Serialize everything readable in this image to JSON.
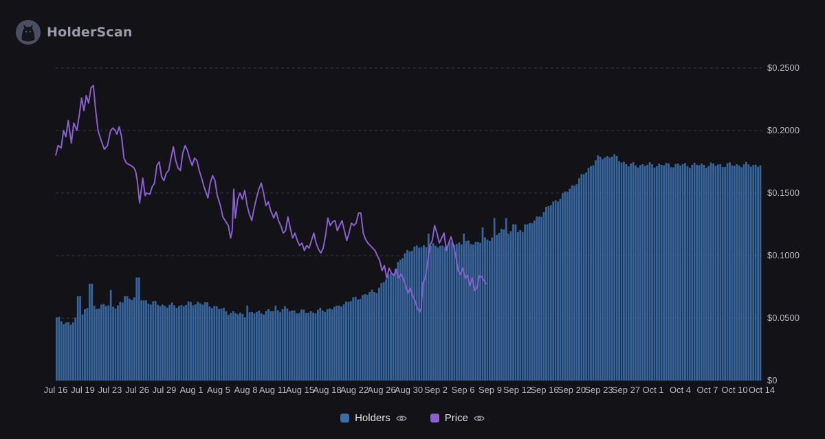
{
  "brand": {
    "name": "HolderScan",
    "logo_icon": "cat-icon"
  },
  "legend": [
    {
      "label": "Holders",
      "color": "#3b6ea8",
      "visibility_icon": "eye-icon"
    },
    {
      "label": "Price",
      "color": "#8a5fd0",
      "visibility_icon": "eye-icon"
    }
  ],
  "chart_data": {
    "type": "bar+line",
    "x_tick_labels": [
      "Jul 16",
      "Jul 19",
      "Jul 23",
      "Jul 26",
      "Jul 29",
      "Aug 1",
      "Aug 5",
      "Aug 8",
      "Aug 11",
      "Aug 15",
      "Aug 18",
      "Aug 22",
      "Aug 26",
      "Aug 30",
      "Sep 2",
      "Sep 6",
      "Sep 9",
      "Sep 12",
      "Sep 16",
      "Sep 20",
      "Sep 23",
      "Sep 27",
      "Oct 1",
      "Oct 4",
      "Oct 7",
      "Oct 10",
      "Oct 14"
    ],
    "y_right": {
      "tick_labels": [
        "$0",
        "$0.0500",
        "$0.1000",
        "$0.1500",
        "$0.2000",
        "$0.2500"
      ],
      "range": [
        0,
        0.25
      ]
    },
    "grid": true,
    "legend_position": "bottom-center",
    "series": [
      {
        "name": "Holders",
        "type": "bar",
        "color": "#3b6ea8",
        "axis": "hidden-left",
        "range": [
          0,
          1.0
        ],
        "anchors": [
          [
            0,
            0.2
          ],
          [
            2,
            0.18
          ],
          [
            4,
            0.23
          ],
          [
            6,
            0.24
          ],
          [
            8,
            0.24
          ],
          [
            10,
            0.27
          ],
          [
            12,
            0.25
          ],
          [
            14,
            0.24
          ],
          [
            16,
            0.24
          ],
          [
            18,
            0.25
          ],
          [
            20,
            0.24
          ],
          [
            22,
            0.22
          ],
          [
            24,
            0.21
          ],
          [
            26,
            0.22
          ],
          [
            27,
            0.22
          ],
          [
            29,
            0.23
          ],
          [
            31,
            0.22
          ],
          [
            33,
            0.22
          ],
          [
            35,
            0.23
          ],
          [
            37,
            0.25
          ],
          [
            39,
            0.27
          ],
          [
            41,
            0.29
          ],
          [
            43,
            0.35
          ],
          [
            45,
            0.42
          ],
          [
            47,
            0.43
          ],
          [
            49,
            0.43
          ],
          [
            51,
            0.44
          ],
          [
            53,
            0.44
          ],
          [
            55,
            0.45
          ],
          [
            57,
            0.48
          ],
          [
            59,
            0.47
          ],
          [
            61,
            0.51
          ],
          [
            63,
            0.56
          ],
          [
            65,
            0.6
          ],
          [
            67,
            0.65
          ],
          [
            69,
            0.71
          ],
          [
            71,
            0.72
          ],
          [
            73,
            0.69
          ]
        ],
        "spikes": [
          [
            3,
            0.27
          ],
          [
            4.5,
            0.31
          ],
          [
            7,
            0.29
          ],
          [
            9,
            0.27
          ],
          [
            10.5,
            0.33
          ],
          [
            24.5,
            0.24
          ],
          [
            28,
            0.24
          ],
          [
            36,
            0.24
          ],
          [
            47.5,
            0.47
          ],
          [
            52,
            0.47
          ],
          [
            54.5,
            0.49
          ],
          [
            56,
            0.52
          ],
          [
            57.5,
            0.52
          ],
          [
            58.5,
            0.5
          ],
          [
            60,
            0.5
          ]
        ]
      },
      {
        "name": "Price",
        "type": "line",
        "color": "#8a5fd0",
        "axis": "right",
        "anchors": [
          [
            0,
            0.18
          ],
          [
            0.3,
            0.188
          ],
          [
            0.7,
            0.186
          ],
          [
            1.0,
            0.2
          ],
          [
            1.3,
            0.195
          ],
          [
            1.6,
            0.208
          ],
          [
            2.0,
            0.19
          ],
          [
            2.3,
            0.206
          ],
          [
            2.7,
            0.2
          ],
          [
            3.0,
            0.212
          ],
          [
            3.3,
            0.226
          ],
          [
            3.6,
            0.216
          ],
          [
            3.9,
            0.228
          ],
          [
            4.2,
            0.222
          ],
          [
            4.5,
            0.234
          ],
          [
            4.8,
            0.236
          ],
          [
            5.1,
            0.216
          ],
          [
            5.4,
            0.2
          ],
          [
            5.8,
            0.192
          ],
          [
            6.2,
            0.185
          ],
          [
            6.6,
            0.188
          ],
          [
            7.0,
            0.2
          ],
          [
            7.3,
            0.202
          ],
          [
            7.6,
            0.2
          ],
          [
            7.8,
            0.197
          ],
          [
            8.1,
            0.203
          ],
          [
            8.4,
            0.195
          ],
          [
            8.7,
            0.178
          ],
          [
            9.0,
            0.174
          ],
          [
            9.3,
            0.173
          ],
          [
            9.6,
            0.172
          ],
          [
            10.0,
            0.17
          ],
          [
            10.2,
            0.167
          ],
          [
            10.4,
            0.16
          ],
          [
            10.7,
            0.142
          ],
          [
            10.9,
            0.152
          ],
          [
            11.1,
            0.162
          ],
          [
            11.4,
            0.148
          ],
          [
            11.6,
            0.15
          ],
          [
            12.0,
            0.149
          ],
          [
            12.3,
            0.155
          ],
          [
            12.6,
            0.158
          ],
          [
            12.9,
            0.172
          ],
          [
            13.2,
            0.175
          ],
          [
            13.5,
            0.163
          ],
          [
            13.8,
            0.16
          ],
          [
            14.1,
            0.166
          ],
          [
            14.4,
            0.168
          ],
          [
            14.7,
            0.178
          ],
          [
            15.0,
            0.187
          ],
          [
            15.3,
            0.176
          ],
          [
            15.6,
            0.17
          ],
          [
            15.9,
            0.168
          ],
          [
            16.2,
            0.182
          ],
          [
            16.5,
            0.188
          ],
          [
            16.8,
            0.184
          ],
          [
            17.1,
            0.177
          ],
          [
            17.4,
            0.172
          ],
          [
            17.7,
            0.178
          ],
          [
            18.0,
            0.176
          ],
          [
            18.3,
            0.168
          ],
          [
            18.6,
            0.162
          ],
          [
            18.9,
            0.155
          ],
          [
            19.2,
            0.15
          ],
          [
            19.4,
            0.146
          ],
          [
            19.7,
            0.158
          ],
          [
            20.0,
            0.164
          ],
          [
            20.3,
            0.16
          ],
          [
            20.6,
            0.148
          ],
          [
            21.0,
            0.14
          ],
          [
            21.3,
            0.131
          ],
          [
            21.7,
            0.127
          ],
          [
            22.0,
            0.124
          ],
          [
            22.3,
            0.114
          ],
          [
            22.5,
            0.12
          ],
          [
            22.7,
            0.153
          ],
          [
            22.9,
            0.13
          ],
          [
            23.2,
            0.145
          ],
          [
            23.5,
            0.15
          ],
          [
            23.8,
            0.145
          ],
          [
            24.1,
            0.152
          ],
          [
            24.4,
            0.14
          ],
          [
            24.7,
            0.133
          ],
          [
            25.0,
            0.128
          ],
          [
            25.3,
            0.138
          ],
          [
            25.6,
            0.146
          ],
          [
            25.9,
            0.153
          ],
          [
            26.2,
            0.158
          ],
          [
            26.5,
            0.15
          ],
          [
            26.8,
            0.14
          ],
          [
            27.1,
            0.143
          ],
          [
            27.4,
            0.136
          ],
          [
            27.8,
            0.13
          ],
          [
            28.1,
            0.135
          ],
          [
            28.4,
            0.128
          ],
          [
            28.7,
            0.124
          ],
          [
            29.0,
            0.118
          ],
          [
            29.3,
            0.12
          ],
          [
            29.6,
            0.131
          ],
          [
            29.9,
            0.122
          ],
          [
            30.2,
            0.114
          ],
          [
            30.5,
            0.118
          ],
          [
            30.8,
            0.112
          ],
          [
            31.1,
            0.108
          ],
          [
            31.4,
            0.11
          ],
          [
            31.7,
            0.104
          ],
          [
            32.0,
            0.108
          ],
          [
            32.3,
            0.106
          ],
          [
            32.6,
            0.112
          ],
          [
            32.9,
            0.118
          ],
          [
            33.2,
            0.11
          ],
          [
            33.5,
            0.105
          ],
          [
            33.8,
            0.102
          ],
          [
            34.1,
            0.106
          ],
          [
            34.4,
            0.116
          ],
          [
            34.7,
            0.13
          ],
          [
            35.0,
            0.124
          ],
          [
            35.3,
            0.127
          ],
          [
            35.6,
            0.128
          ],
          [
            35.9,
            0.12
          ],
          [
            36.2,
            0.124
          ],
          [
            36.5,
            0.128
          ],
          [
            36.8,
            0.12
          ],
          [
            37.1,
            0.112
          ],
          [
            37.4,
            0.118
          ],
          [
            37.7,
            0.126
          ],
          [
            38.0,
            0.124
          ],
          [
            38.3,
            0.126
          ],
          [
            38.6,
            0.134
          ],
          [
            38.9,
            0.134
          ],
          [
            39.2,
            0.118
          ],
          [
            39.5,
            0.113
          ],
          [
            39.8,
            0.11
          ],
          [
            40.1,
            0.108
          ],
          [
            40.4,
            0.106
          ],
          [
            40.7,
            0.104
          ],
          [
            41.0,
            0.1
          ],
          [
            41.3,
            0.096
          ],
          [
            41.6,
            0.088
          ],
          [
            41.9,
            0.092
          ],
          [
            42.2,
            0.082
          ],
          [
            42.5,
            0.09
          ],
          [
            42.8,
            0.086
          ],
          [
            43.1,
            0.084
          ],
          [
            43.4,
            0.089
          ],
          [
            43.7,
            0.082
          ],
          [
            44.0,
            0.085
          ],
          [
            44.3,
            0.082
          ],
          [
            44.6,
            0.076
          ],
          [
            44.9,
            0.07
          ],
          [
            45.2,
            0.074
          ],
          [
            45.5,
            0.068
          ],
          [
            45.8,
            0.064
          ],
          [
            46.1,
            0.058
          ],
          [
            46.4,
            0.055
          ],
          [
            46.6,
            0.058
          ],
          [
            46.8,
            0.078
          ],
          [
            47.1,
            0.082
          ],
          [
            47.4,
            0.094
          ],
          [
            47.7,
            0.108
          ],
          [
            48.0,
            0.112
          ],
          [
            48.3,
            0.124
          ],
          [
            48.6,
            0.118
          ],
          [
            48.9,
            0.11
          ],
          [
            49.2,
            0.114
          ],
          [
            49.5,
            0.118
          ],
          [
            49.8,
            0.104
          ],
          [
            50.1,
            0.11
          ],
          [
            50.4,
            0.115
          ],
          [
            50.7,
            0.108
          ],
          [
            51.0,
            0.1
          ],
          [
            51.3,
            0.088
          ],
          [
            51.6,
            0.085
          ],
          [
            51.9,
            0.09
          ],
          [
            52.2,
            0.082
          ],
          [
            52.5,
            0.084
          ],
          [
            52.8,
            0.076
          ],
          [
            53.1,
            0.082
          ],
          [
            53.4,
            0.072
          ],
          [
            53.7,
            0.074
          ],
          [
            54.0,
            0.084
          ],
          [
            54.3,
            0.083
          ],
          [
            54.6,
            0.08
          ],
          [
            54.9,
            0.077
          ]
        ]
      }
    ]
  }
}
